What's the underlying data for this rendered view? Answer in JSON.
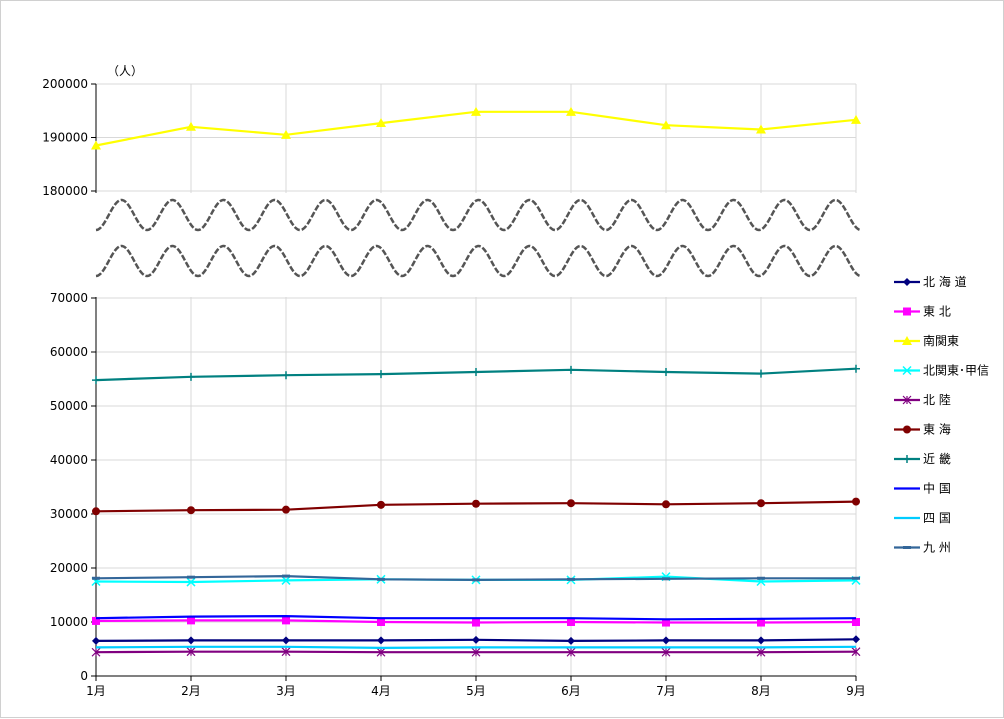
{
  "chart_data": {
    "type": "line",
    "y_unit": "（人）",
    "categories": [
      "1月",
      "2月",
      "3月",
      "4月",
      "5月",
      "6月",
      "7月",
      "8月",
      "9月"
    ],
    "y_axis": {
      "broken": true,
      "lower_range": [
        0,
        70000
      ],
      "upper_range": [
        180000,
        200000
      ],
      "ticks": [
        "0",
        "10000",
        "20000",
        "30000",
        "40000",
        "50000",
        "60000",
        "70000",
        "180000",
        "190000",
        "200000"
      ]
    },
    "grid": true,
    "legend_position": "right",
    "series": [
      {
        "name": "北 海 道",
        "color": "#00007f",
        "marker": "diamond",
        "values": [
          6500,
          6600,
          6600,
          6600,
          6700,
          6500,
          6600,
          6600,
          6800
        ]
      },
      {
        "name": "東 北",
        "color": "#ff00ff",
        "marker": "square",
        "values": [
          10200,
          10300,
          10300,
          10000,
          9900,
          10000,
          9900,
          9900,
          10000
        ]
      },
      {
        "name": "南関東",
        "color": "#ffff00",
        "marker": "triangle",
        "values": [
          188500,
          192000,
          190500,
          192700,
          194800,
          194800,
          192300,
          191500,
          193300
        ]
      },
      {
        "name": "北関東･甲信",
        "color": "#00ffff",
        "marker": "x",
        "values": [
          17500,
          17400,
          17700,
          17900,
          17800,
          17800,
          18400,
          17500,
          17700
        ]
      },
      {
        "name": "北 陸",
        "color": "#800080",
        "marker": "star",
        "values": [
          4400,
          4500,
          4500,
          4400,
          4400,
          4400,
          4400,
          4400,
          4500
        ]
      },
      {
        "name": "東 海",
        "color": "#800000",
        "marker": "circle",
        "values": [
          30500,
          30700,
          30800,
          31700,
          31900,
          32000,
          31800,
          32000,
          32300
        ]
      },
      {
        "name": "近 畿",
        "color": "#008080",
        "marker": "plus",
        "values": [
          54800,
          55400,
          55700,
          55900,
          56300,
          56700,
          56300,
          56000,
          56900
        ]
      },
      {
        "name": "中 国",
        "color": "#0000ff",
        "marker": "none",
        "values": [
          10700,
          11000,
          11100,
          10700,
          10700,
          10700,
          10500,
          10600,
          10700
        ]
      },
      {
        "name": "四 国",
        "color": "#00ccff",
        "marker": "none",
        "values": [
          5300,
          5400,
          5400,
          5200,
          5300,
          5300,
          5300,
          5300,
          5400
        ]
      },
      {
        "name": "九 州",
        "color": "#336699",
        "marker": "dash",
        "values": [
          18100,
          18300,
          18500,
          17900,
          17800,
          17900,
          18000,
          18100,
          18100
        ]
      }
    ]
  }
}
